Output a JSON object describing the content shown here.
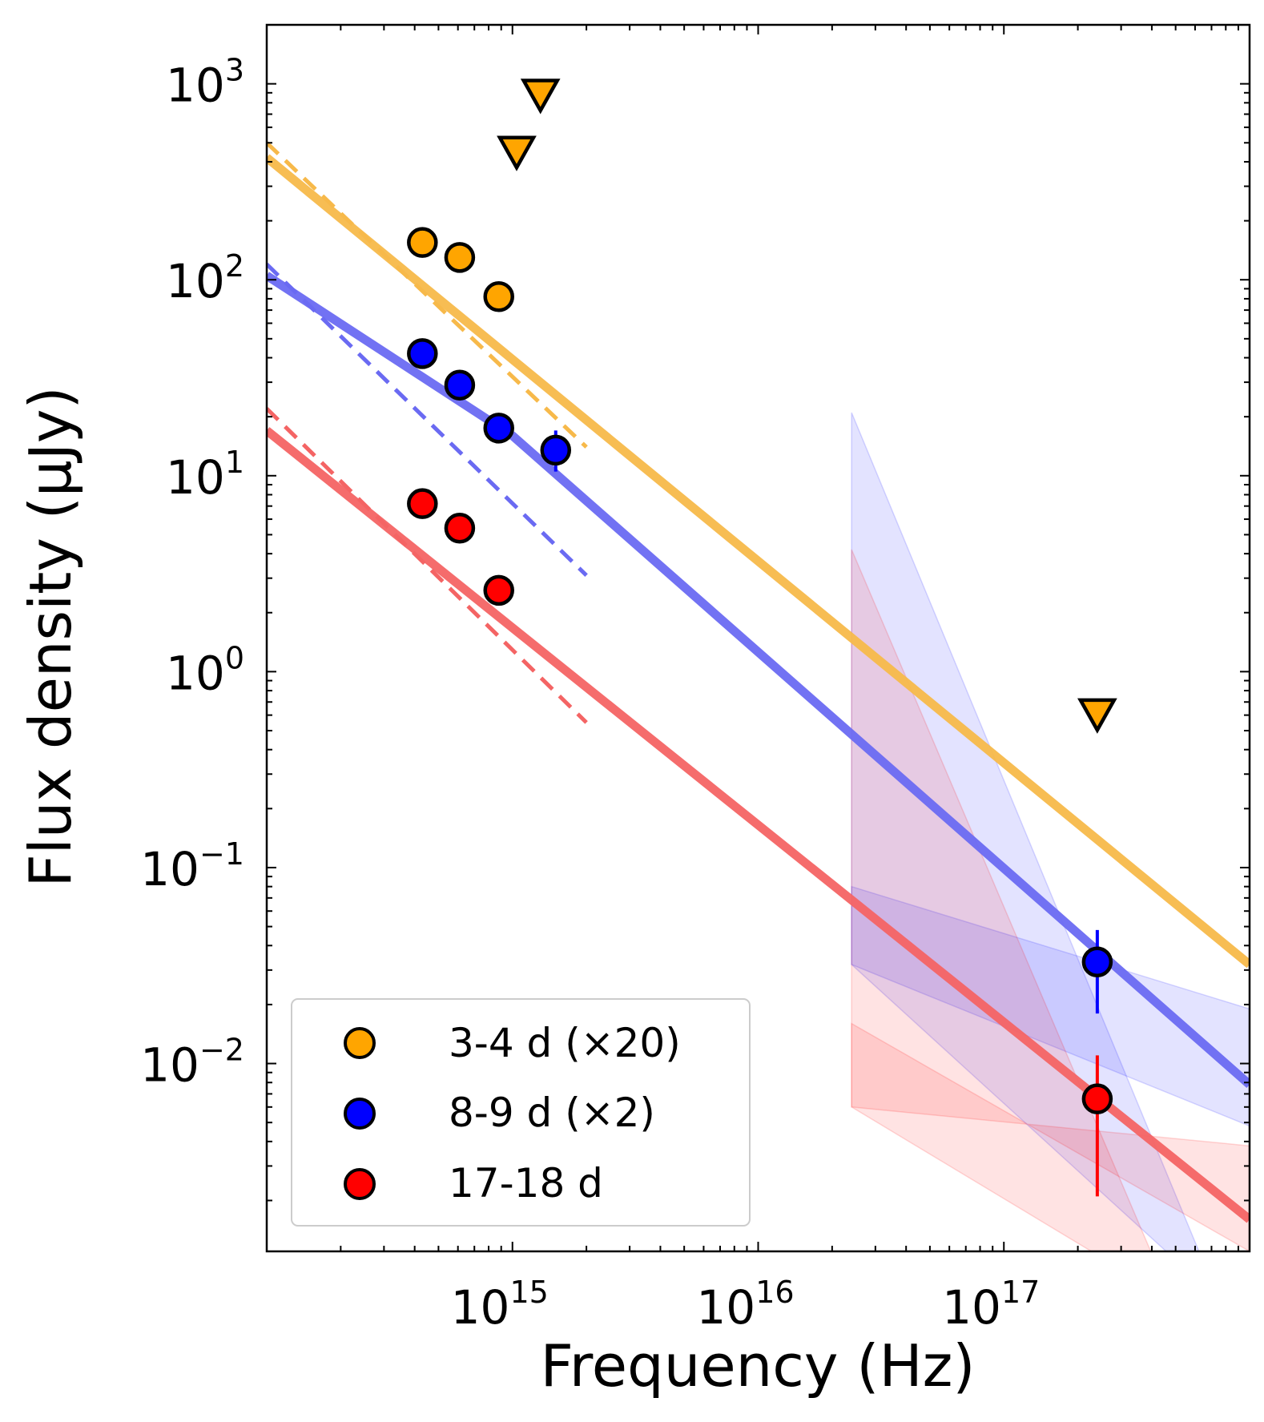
{
  "chart_data": {
    "type": "scatter",
    "xscale": "log",
    "yscale": "log",
    "xlabel": "Frequency (Hz)",
    "ylabel": "Flux density (μJy)",
    "xlim": [
      100000000000000.0,
      1e+18
    ],
    "ylim": [
      0.0011,
      2000
    ],
    "xticks": [
      {
        "value": 1000000000000000.0,
        "base": "10",
        "exp": "15"
      },
      {
        "value": 1e+16,
        "base": "10",
        "exp": "16"
      },
      {
        "value": 1e+17,
        "base": "10",
        "exp": "17"
      }
    ],
    "yticks": [
      {
        "value": 1000.0,
        "base": "10",
        "exp": "3"
      },
      {
        "value": 100.0,
        "base": "10",
        "exp": "2"
      },
      {
        "value": 10.0,
        "base": "10",
        "exp": "1"
      },
      {
        "value": 1.0,
        "base": "10",
        "exp": "0"
      },
      {
        "value": 0.1,
        "base": "10",
        "exp": "−1"
      },
      {
        "value": 0.01,
        "base": "10",
        "exp": "−2"
      }
    ],
    "legend_position": "lower-left",
    "series": [
      {
        "name": "3-4 d (×20)",
        "color": "#ffa500",
        "fit_color": "#f7b94a",
        "points": [
          {
            "x": 430000000000000.0,
            "y": 155
          },
          {
            "x": 610000000000000.0,
            "y": 130
          },
          {
            "x": 880000000000000.0,
            "y": 82
          }
        ],
        "upper_limits": [
          {
            "x": 1300000000000000.0,
            "y": 900
          },
          {
            "x": 1040000000000000.0,
            "y": 460
          },
          {
            "x": 2.4e+17,
            "y": 0.62
          }
        ],
        "fit_solid": [
          [
            100000000000000.0,
            420
          ],
          [
            1e+18,
            0.032
          ]
        ],
        "fit_dashed": [
          [
            100000000000000.0,
            500
          ],
          [
            2000000000000000.0,
            14
          ]
        ],
        "errorbars": []
      },
      {
        "name": "8-9 d (×2)",
        "color": "#0000ff",
        "fit_color": "#6a6af2",
        "points": [
          {
            "x": 430000000000000.0,
            "y": 42
          },
          {
            "x": 610000000000000.0,
            "y": 29
          },
          {
            "x": 880000000000000.0,
            "y": 17.5
          },
          {
            "x": 1500000000000000.0,
            "y": 13.5
          },
          {
            "x": 2.4e+17,
            "y": 0.033
          }
        ],
        "upper_limits": [],
        "fit_solid": [
          [
            100000000000000.0,
            105
          ],
          [
            1000000000000000.0,
            16
          ],
          [
            1e+18,
            0.0078
          ]
        ],
        "fit_dashed": [
          [
            100000000000000.0,
            120
          ],
          [
            2000000000000000.0,
            3.1
          ]
        ],
        "errorbars": [
          {
            "x": 1500000000000000.0,
            "low": 10.5,
            "high": 17
          },
          {
            "x": 2.4e+17,
            "low": 0.018,
            "high": 0.048
          }
        ],
        "band": {
          "x_start": 2.4e+16,
          "x_end": 1e+18,
          "upper_start": 21,
          "lower_start": 0.08,
          "upper_end": 0.0048,
          "lower_end_x": 7.5e+17,
          "lower_right": 0.019,
          "mid_low": 0.032
        }
      },
      {
        "name": "17-18 d",
        "color": "#ff0000",
        "fit_color": "#f46464",
        "points": [
          {
            "x": 430000000000000.0,
            "y": 7.2
          },
          {
            "x": 610000000000000.0,
            "y": 5.4
          },
          {
            "x": 880000000000000.0,
            "y": 2.6
          },
          {
            "x": 2.4e+17,
            "y": 0.0066
          }
        ],
        "upper_limits": [],
        "fit_solid": [
          [
            100000000000000.0,
            17
          ],
          [
            1e+18,
            0.0016
          ]
        ],
        "fit_dashed": [
          [
            100000000000000.0,
            22
          ],
          [
            2000000000000000.0,
            0.55
          ]
        ],
        "errorbars": [
          {
            "x": 2.4e+17,
            "low": 0.0021,
            "high": 0.011
          }
        ],
        "band": {
          "x_start": 2.4e+16,
          "x_end": 1e+18,
          "upper_start": 4.2,
          "lower_start": 0.016,
          "upper_end": 0.0038,
          "lower_end_x": 4.8e+17,
          "lower_right": 0.0011,
          "mid_low": 0.006
        }
      }
    ]
  }
}
